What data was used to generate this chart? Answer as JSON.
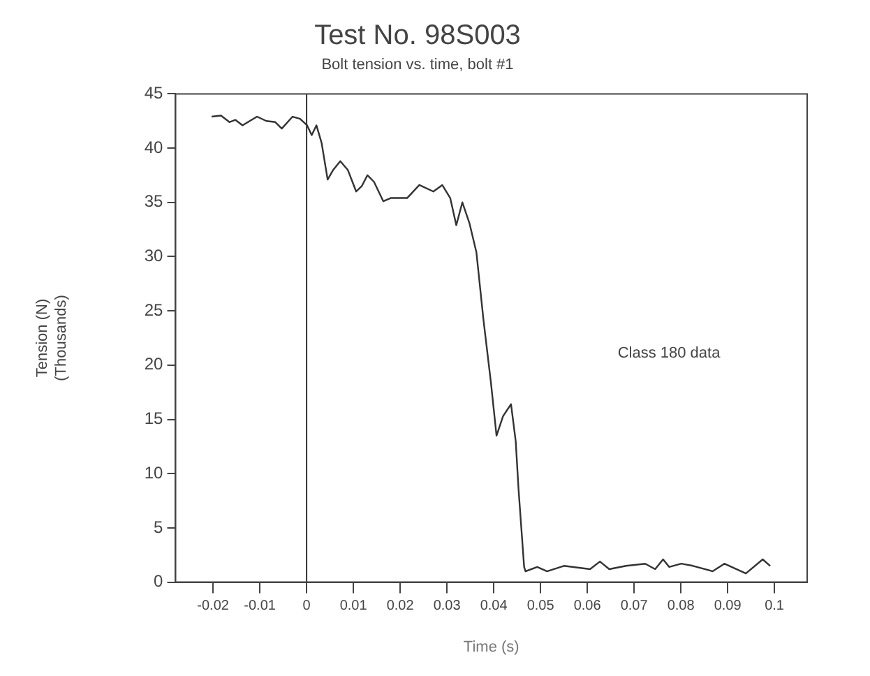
{
  "chart_data": {
    "type": "line",
    "title": "Test No. 98S003",
    "subtitle": "Bolt tension vs. time, bolt #1",
    "xlabel": "Time (s)",
    "ylabel": "Tension (N)\n(Thousands)",
    "annotations": [
      "Class 180 data"
    ],
    "x": [
      -0.0203,
      -0.0183,
      -0.0165,
      -0.0152,
      -0.0137,
      -0.0106,
      -0.0086,
      -0.0067,
      -0.0053,
      -0.003,
      -0.0014,
      0.0001,
      0.0011,
      0.0021,
      0.0032,
      0.0045,
      0.0057,
      0.0072,
      0.0088,
      0.0106,
      0.0118,
      0.013,
      0.0144,
      0.0164,
      0.018,
      0.0215,
      0.0241,
      0.0271,
      0.029,
      0.0307,
      0.032,
      0.0333,
      0.0348,
      0.0363,
      0.0378,
      0.0394,
      0.0406,
      0.042,
      0.0437,
      0.0447,
      0.0453,
      0.0465,
      0.0468,
      0.0493,
      0.0514,
      0.055,
      0.0606,
      0.0627,
      0.0647,
      0.0683,
      0.0724,
      0.0745,
      0.0762,
      0.0775,
      0.0801,
      0.0826,
      0.0868,
      0.0893,
      0.0939,
      0.0975,
      0.0991
    ],
    "series": [
      {
        "color": "#333333",
        "values": [
          42.9,
          43.0,
          42.4,
          42.6,
          42.1,
          42.9,
          42.5,
          42.4,
          41.8,
          42.9,
          42.7,
          42.1,
          41.2,
          42.1,
          40.5,
          37.1,
          38.0,
          38.8,
          38.0,
          36.0,
          36.5,
          37.5,
          36.9,
          35.1,
          35.4,
          35.4,
          36.6,
          36.0,
          36.6,
          35.4,
          32.9,
          35.0,
          33.1,
          30.4,
          24.2,
          18.4,
          13.5,
          15.3,
          16.4,
          13.0,
          8.6,
          1.4,
          1.0,
          1.4,
          1.0,
          1.5,
          1.2,
          1.9,
          1.2,
          1.5,
          1.7,
          1.2,
          2.1,
          1.4,
          1.7,
          1.5,
          1.0,
          1.7,
          0.8,
          2.1,
          1.5
        ]
      }
    ],
    "xlim": [
      -0.028,
      0.107
    ],
    "xticks": [
      -0.02,
      -0.01,
      0,
      0.01,
      0.02,
      0.03,
      0.04,
      0.05,
      0.06,
      0.07,
      0.08,
      0.09,
      0.1
    ],
    "ylim": [
      0,
      45
    ],
    "yticks": [
      0,
      5,
      10,
      15,
      20,
      25,
      30,
      35,
      40,
      45
    ],
    "ref_lines": [
      {
        "axis": "x",
        "value": 0,
        "color": "#333333"
      }
    ],
    "grid": false,
    "legend": false,
    "marker": "none",
    "line_style": "solid"
  }
}
